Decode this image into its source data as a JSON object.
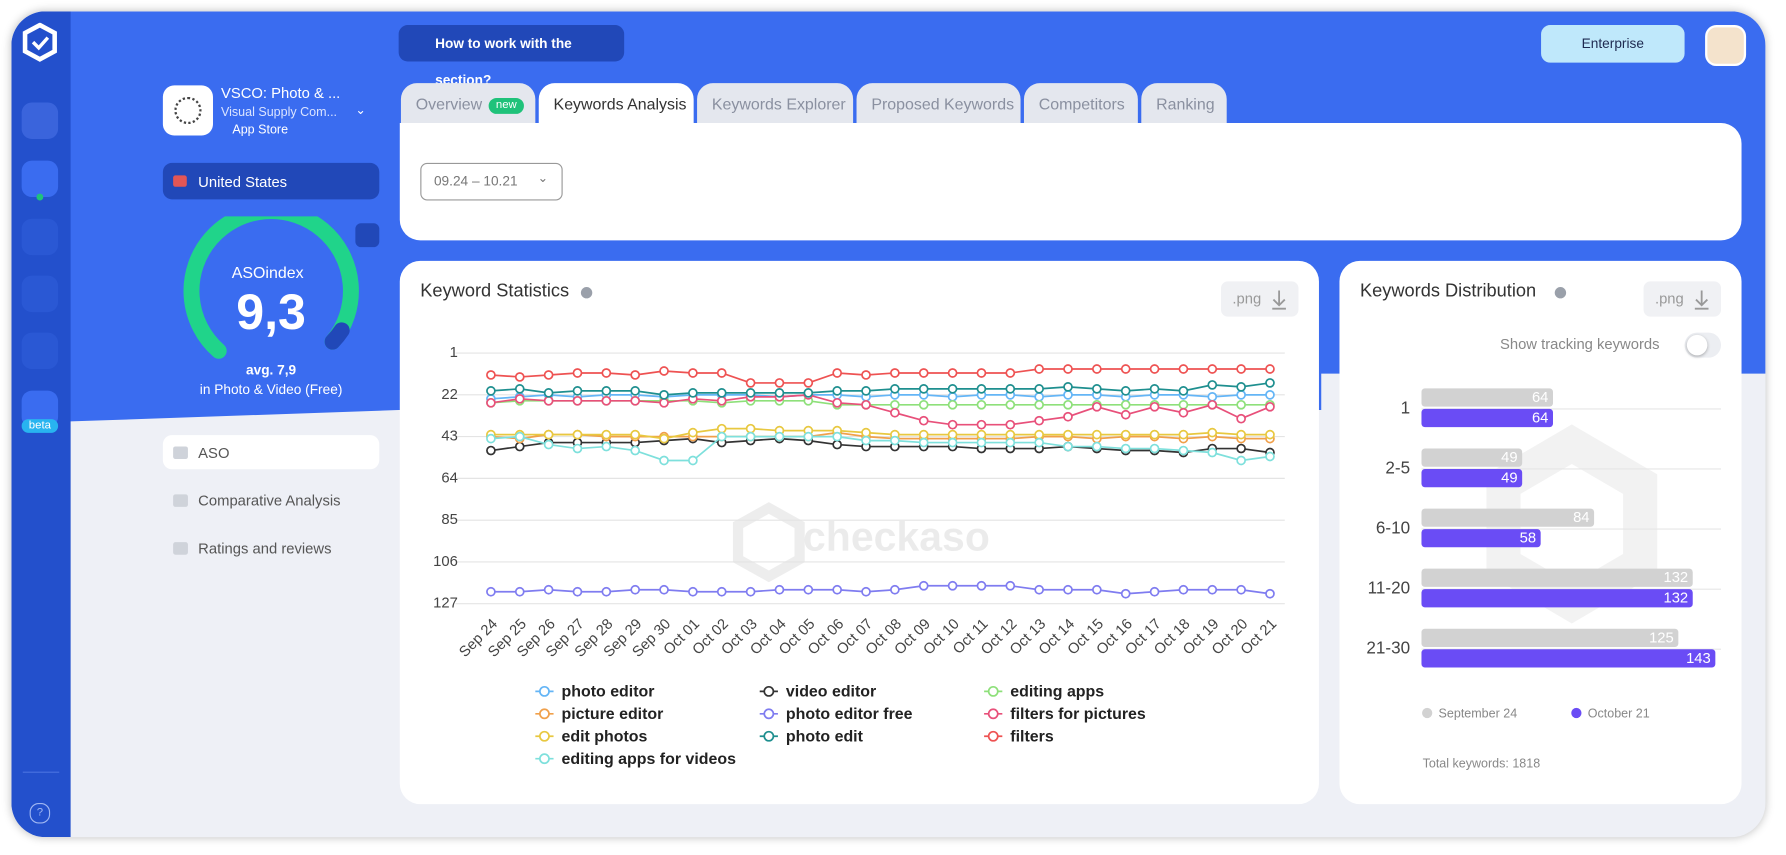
{
  "sidebar": {
    "badge": "beta"
  },
  "header": {
    "help_button": "How to work with the section?",
    "plan_button": "Enterprise"
  },
  "app": {
    "name": "VSCO: Photo & ...",
    "developer": "Visual Supply Com...",
    "store": "App Store"
  },
  "country": "United States",
  "aso_index": {
    "label": "ASOindex",
    "value": "9,3",
    "average": "avg. 7,9",
    "category": "in Photo & Video (Free)"
  },
  "menu": [
    "ASO",
    "Comparative Analysis",
    "Ratings and reviews"
  ],
  "tabs": [
    {
      "label": "Overview",
      "badge": "new"
    },
    {
      "label": "Keywords Analysis",
      "active": true
    },
    {
      "label": "Keywords Explorer"
    },
    {
      "label": "Proposed Keywords"
    },
    {
      "label": "Competitors"
    },
    {
      "label": "Ranking"
    }
  ],
  "date_range": "09.24 – 10.21",
  "chart_data": [
    {
      "type": "line",
      "title": "Keyword Statistics",
      "export_button": ".png",
      "watermark": "checkaso",
      "categories": [
        "Sep 24",
        "Sep 25",
        "Sep 26",
        "Sep 27",
        "Sep 28",
        "Sep 29",
        "Sep 30",
        "Oct 01",
        "Oct 02",
        "Oct 03",
        "Oct 04",
        "Oct 05",
        "Oct 06",
        "Oct 07",
        "Oct 08",
        "Oct 09",
        "Oct 10",
        "Oct 11",
        "Oct 12",
        "Oct 13",
        "Oct 14",
        "Oct 15",
        "Oct 16",
        "Oct 17",
        "Oct 18",
        "Oct 19",
        "Oct 20",
        "Oct 21"
      ],
      "ylim": [
        1,
        127
      ],
      "yticks": [
        1,
        22,
        43,
        64,
        85,
        106,
        127
      ],
      "y_reversed": true,
      "grid": true,
      "legend": "bottom",
      "series": [
        {
          "name": "photo editor",
          "color": "#64b5f6",
          "values": [
            24,
            23,
            22,
            23,
            22,
            22,
            23,
            22,
            22,
            22,
            23,
            22,
            22,
            23,
            22,
            22,
            23,
            22,
            22,
            23,
            22,
            22,
            23,
            22,
            22,
            23,
            22,
            22
          ]
        },
        {
          "name": "video editor",
          "color": "#333333",
          "values": [
            50,
            48,
            46,
            46,
            46,
            46,
            45,
            44,
            46,
            45,
            44,
            45,
            47,
            48,
            48,
            48,
            48,
            49,
            49,
            49,
            48,
            49,
            50,
            50,
            51,
            49,
            49,
            51
          ]
        },
        {
          "name": "editing apps",
          "color": "#8ee07a",
          "values": [
            26,
            25,
            25,
            25,
            25,
            25,
            25,
            25,
            26,
            25,
            25,
            25,
            27,
            27,
            27,
            27,
            27,
            27,
            27,
            27,
            27,
            27,
            27,
            27,
            27,
            27,
            27,
            27
          ]
        },
        {
          "name": "picture editor",
          "color": "#f0a04b",
          "values": [
            43,
            44,
            42,
            42,
            43,
            43,
            43,
            43,
            43,
            43,
            43,
            43,
            41,
            43,
            44,
            44,
            44,
            44,
            44,
            43,
            43,
            44,
            43,
            43,
            44,
            43,
            44,
            44
          ]
        },
        {
          "name": "photo editor free",
          "color": "#7f7cf0",
          "values": [
            121,
            121,
            120,
            121,
            121,
            120,
            120,
            121,
            121,
            121,
            120,
            120,
            120,
            121,
            120,
            118,
            118,
            118,
            118,
            120,
            120,
            120,
            122,
            121,
            120,
            120,
            120,
            122
          ]
        },
        {
          "name": "filters for pictures",
          "color": "#e8507a",
          "values": [
            26,
            24,
            25,
            25,
            25,
            25,
            26,
            24,
            25,
            23,
            23,
            22,
            26,
            27,
            31,
            35,
            37,
            37,
            37,
            35,
            33,
            28,
            32,
            28,
            31,
            27,
            34,
            28
          ]
        },
        {
          "name": "edit photos",
          "color": "#e8c840",
          "values": [
            42,
            42,
            42,
            42,
            42,
            42,
            44,
            41,
            39,
            39,
            40,
            40,
            40,
            41,
            42,
            42,
            42,
            42,
            42,
            42,
            42,
            42,
            42,
            42,
            42,
            41,
            42,
            42
          ]
        },
        {
          "name": "photo edit",
          "color": "#1e8f8f",
          "values": [
            20,
            19,
            21,
            20,
            20,
            20,
            22,
            21,
            21,
            21,
            21,
            21,
            20,
            20,
            19,
            19,
            19,
            19,
            19,
            19,
            18,
            19,
            20,
            19,
            20,
            17,
            18,
            16
          ]
        },
        {
          "name": "filters",
          "color": "#ee5252",
          "values": [
            12,
            13,
            12,
            11,
            11,
            12,
            10,
            11,
            11,
            16,
            16,
            16,
            11,
            12,
            11,
            11,
            11,
            11,
            11,
            9,
            9,
            9,
            9,
            9,
            9,
            9,
            9,
            9
          ]
        },
        {
          "name": "editing apps for videos",
          "color": "#7ee0dc",
          "values": [
            44,
            43,
            47,
            49,
            48,
            50,
            55,
            55,
            43,
            43,
            43,
            43,
            43,
            45,
            45,
            46,
            46,
            46,
            46,
            46,
            48,
            48,
            49,
            49,
            50,
            51,
            55,
            53
          ]
        }
      ]
    },
    {
      "type": "bar",
      "orientation": "horizontal",
      "title": "Keywords Distribution",
      "export_button": ".png",
      "toggle_label": "Show tracking keywords",
      "categories": [
        "1",
        "2-5",
        "6-10",
        "11-20",
        "21-30"
      ],
      "legend": "bottom",
      "series": [
        {
          "name": "September 24",
          "color": "#d2d2d2",
          "values": [
            64,
            49,
            84,
            132,
            125
          ]
        },
        {
          "name": "October 21",
          "color": "#6a4cf5",
          "values": [
            64,
            49,
            58,
            132,
            143
          ]
        }
      ],
      "footnote": "Total keywords: 1818"
    }
  ]
}
